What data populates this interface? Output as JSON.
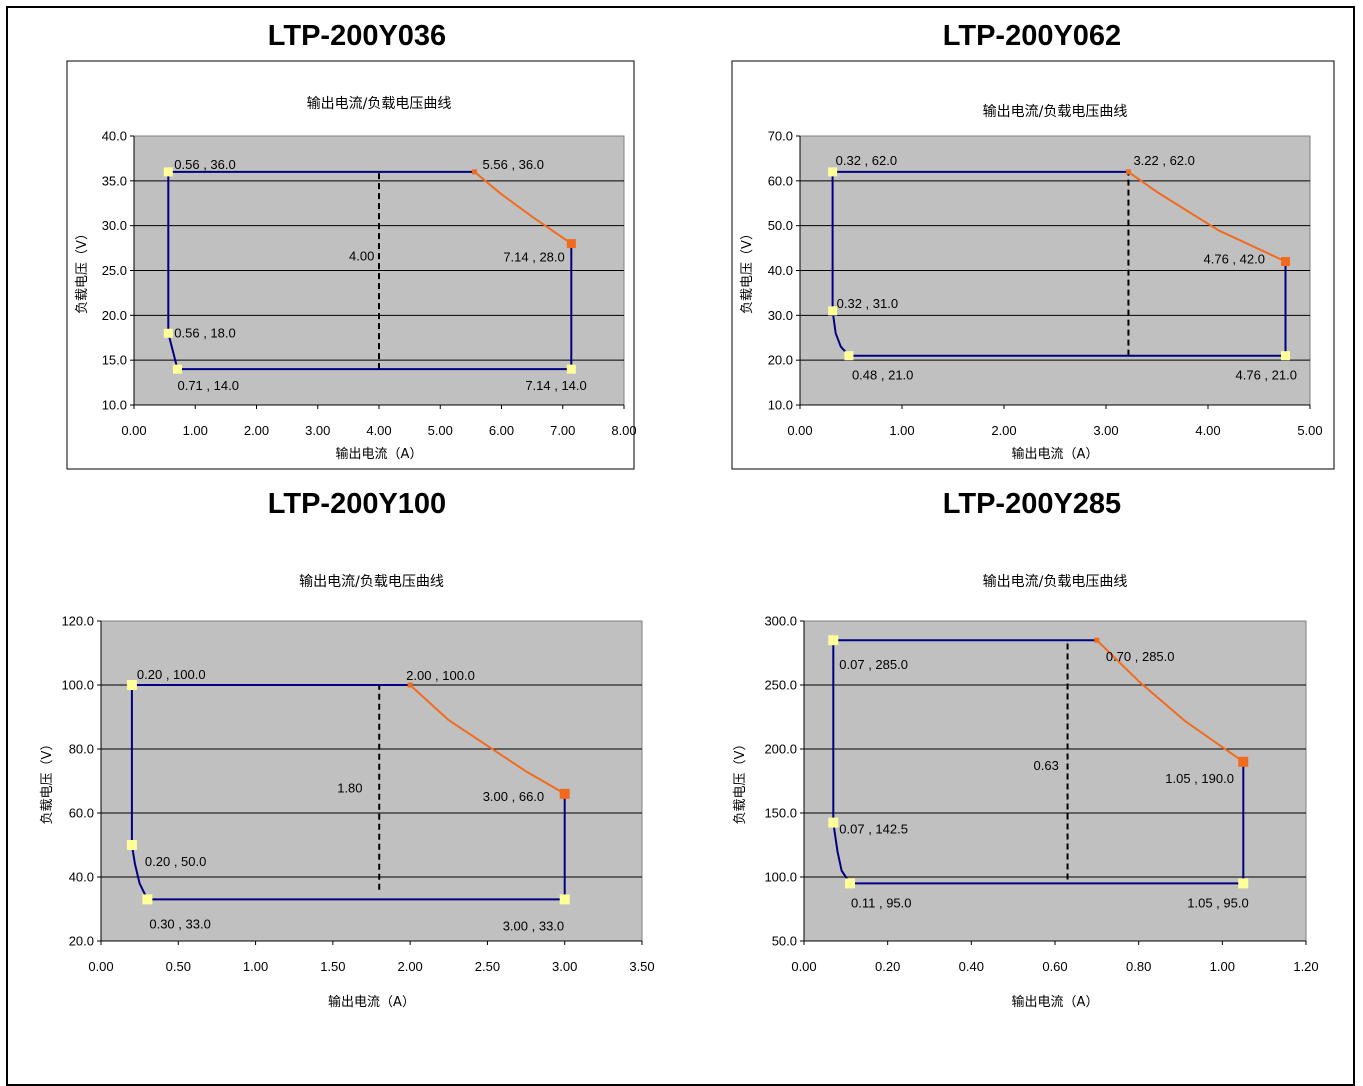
{
  "colors": {
    "plot_bg": "#c0c0c0",
    "boundary_line": "#000080",
    "power_curve": "#f26b1d",
    "light_marker": "#ffff99",
    "dark_marker": "#f26b1d",
    "grid": "#000000"
  },
  "charts": [
    {
      "heading": "LTP-200Y036",
      "title": "输出电流/负载电压曲线",
      "xlabel": "输出电流（A）",
      "ylabel": "负载电压（V）",
      "x_ticks": [
        "0.00",
        "1.00",
        "2.00",
        "3.00",
        "4.00",
        "5.00",
        "6.00",
        "7.00",
        "8.00"
      ],
      "y_ticks": [
        "10.0",
        "15.0",
        "20.0",
        "25.0",
        "30.0",
        "35.0",
        "40.0"
      ],
      "divider_label": "4.00",
      "point_labels": [
        "0.56 , 36.0",
        "5.56 , 36.0",
        "7.14 , 28.0",
        "0.56 , 18.0",
        "0.71 , 14.0",
        "7.14 , 14.0"
      ]
    },
    {
      "heading": "LTP-200Y062",
      "title": "输出电流/负载电压曲线",
      "xlabel": "输出电流（A）",
      "ylabel": "负载电压（V）",
      "x_ticks": [
        "0.00",
        "1.00",
        "2.00",
        "3.00",
        "4.00",
        "5.00"
      ],
      "y_ticks": [
        "10.0",
        "20.0",
        "30.0",
        "40.0",
        "50.0",
        "60.0",
        "70.0"
      ],
      "divider_label": "",
      "point_labels": [
        "0.32 , 62.0",
        "3.22 , 62.0",
        "4.76 , 42.0",
        "0.32 , 31.0",
        "0.48 , 21.0",
        "4.76 , 21.0"
      ]
    },
    {
      "heading": "LTP-200Y100",
      "title": "输出电流/负载电压曲线",
      "xlabel": "输出电流（A）",
      "ylabel": "负载电压（V）",
      "x_ticks": [
        "0.00",
        "0.50",
        "1.00",
        "1.50",
        "2.00",
        "2.50",
        "3.00",
        "3.50"
      ],
      "y_ticks": [
        "20.0",
        "40.0",
        "60.0",
        "80.0",
        "100.0",
        "120.0"
      ],
      "divider_label": "1.80",
      "point_labels": [
        "0.20 , 100.0",
        "2.00 , 100.0",
        "3.00 , 66.0",
        "0.20 , 50.0",
        "0.30 , 33.0",
        "3.00 , 33.0"
      ]
    },
    {
      "heading": "LTP-200Y285",
      "title": "输出电流/负载电压曲线",
      "xlabel": "输出电流（A）",
      "ylabel": "负载电压（V）",
      "x_ticks": [
        "0.00",
        "0.20",
        "0.40",
        "0.60",
        "0.80",
        "1.00",
        "1.20"
      ],
      "y_ticks": [
        "50.0",
        "100.0",
        "150.0",
        "200.0",
        "250.0",
        "300.0"
      ],
      "divider_label": "0.63",
      "point_labels": [
        "0.07 , 285.0",
        "0.70 , 285.0",
        "1.05 , 190.0",
        "0.07 , 142.5",
        "0.11 , 95.0",
        "1.05 , 95.0"
      ]
    }
  ],
  "chart_data": [
    {
      "type": "line",
      "title": "输出电流/负载电压曲线",
      "xlabel": "输出电流（A）",
      "ylabel": "负载电压（V）",
      "xlim": [
        0,
        8
      ],
      "ylim": [
        10,
        40
      ],
      "grid": "horizontal",
      "series": [
        {
          "color": "#000080",
          "points": [
            [
              0.71,
              14.0
            ],
            [
              0.56,
              18.0
            ],
            [
              0.56,
              36.0
            ],
            [
              5.56,
              36.0
            ]
          ]
        },
        {
          "color": "#000080",
          "points": [
            [
              7.14,
              28.0
            ],
            [
              7.14,
              14.0
            ],
            [
              0.71,
              14.0
            ]
          ]
        },
        {
          "color": "#f26b1d",
          "points": [
            [
              5.56,
              36.0
            ],
            [
              6.0,
              33.5
            ],
            [
              6.5,
              31.0
            ],
            [
              7.14,
              28.0
            ]
          ]
        }
      ],
      "markers": [
        {
          "x": 0.56,
          "y": 36.0,
          "kind": "light"
        },
        {
          "x": 5.56,
          "y": 36.0,
          "kind": "dark_small"
        },
        {
          "x": 7.14,
          "y": 28.0,
          "kind": "dark"
        },
        {
          "x": 0.56,
          "y": 18.0,
          "kind": "light"
        },
        {
          "x": 0.71,
          "y": 14.0,
          "kind": "light"
        },
        {
          "x": 7.14,
          "y": 14.0,
          "kind": "light"
        }
      ],
      "divider": {
        "x": 4.0,
        "y_from": 14.0,
        "y_to": 36.0
      }
    },
    {
      "type": "line",
      "title": "输出电流/负载电压曲线",
      "xlabel": "输出电流（A）",
      "ylabel": "负载电压（V）",
      "xlim": [
        0,
        5
      ],
      "ylim": [
        10,
        70
      ],
      "grid": "horizontal",
      "series": [
        {
          "color": "#000080",
          "points": [
            [
              0.48,
              21.0
            ],
            [
              0.4,
              23.0
            ],
            [
              0.35,
              26.0
            ],
            [
              0.32,
              31.0
            ],
            [
              0.32,
              62.0
            ],
            [
              3.22,
              62.0
            ]
          ]
        },
        {
          "color": "#000080",
          "points": [
            [
              4.76,
              42.0
            ],
            [
              4.76,
              21.0
            ],
            [
              0.48,
              21.0
            ]
          ]
        },
        {
          "color": "#f26b1d",
          "points": [
            [
              3.22,
              62.0
            ],
            [
              3.5,
              57.5
            ],
            [
              4.1,
              49.0
            ],
            [
              4.76,
              42.0
            ]
          ]
        }
      ],
      "markers": [
        {
          "x": 0.32,
          "y": 62.0,
          "kind": "light"
        },
        {
          "x": 3.22,
          "y": 62.0,
          "kind": "dark_small"
        },
        {
          "x": 4.76,
          "y": 42.0,
          "kind": "dark"
        },
        {
          "x": 0.32,
          "y": 31.0,
          "kind": "light"
        },
        {
          "x": 0.48,
          "y": 21.0,
          "kind": "light"
        },
        {
          "x": 4.76,
          "y": 21.0,
          "kind": "light"
        }
      ],
      "divider": {
        "x": 3.22,
        "y_from": 21.0,
        "y_to": 62.0
      }
    },
    {
      "type": "line",
      "title": "输出电流/负载电压曲线",
      "xlabel": "输出电流（A）",
      "ylabel": "负载电压（V）",
      "xlim": [
        0,
        3.5
      ],
      "ylim": [
        20,
        120
      ],
      "grid": "horizontal",
      "series": [
        {
          "color": "#000080",
          "points": [
            [
              0.3,
              33.0
            ],
            [
              0.25,
              38.0
            ],
            [
              0.22,
              44.0
            ],
            [
              0.2,
              50.0
            ],
            [
              0.2,
              100.0
            ],
            [
              2.0,
              100.0
            ]
          ]
        },
        {
          "color": "#000080",
          "points": [
            [
              3.0,
              66.0
            ],
            [
              3.0,
              33.0
            ],
            [
              0.3,
              33.0
            ]
          ]
        },
        {
          "color": "#f26b1d",
          "points": [
            [
              2.0,
              100.0
            ],
            [
              2.25,
              89.0
            ],
            [
              2.5,
              81.0
            ],
            [
              2.75,
              73.0
            ],
            [
              3.0,
              66.0
            ]
          ]
        }
      ],
      "markers": [
        {
          "x": 0.2,
          "y": 100.0,
          "kind": "light"
        },
        {
          "x": 2.0,
          "y": 100.0,
          "kind": "dark_small"
        },
        {
          "x": 3.0,
          "y": 66.0,
          "kind": "dark"
        },
        {
          "x": 0.2,
          "y": 50.0,
          "kind": "light"
        },
        {
          "x": 0.3,
          "y": 33.0,
          "kind": "light"
        },
        {
          "x": 3.0,
          "y": 33.0,
          "kind": "light"
        }
      ],
      "divider": {
        "x": 1.8,
        "y_from": 36.0,
        "y_to": 100.0
      }
    },
    {
      "type": "line",
      "title": "输出电流/负载电压曲线",
      "xlabel": "输出电流（A）",
      "ylabel": "负载电压（V）",
      "xlim": [
        0,
        1.2
      ],
      "ylim": [
        50,
        300
      ],
      "grid": "horizontal",
      "series": [
        {
          "color": "#000080",
          "points": [
            [
              0.11,
              95.0
            ],
            [
              0.09,
              105.0
            ],
            [
              0.08,
              120.0
            ],
            [
              0.07,
              142.5
            ],
            [
              0.07,
              285.0
            ],
            [
              0.7,
              285.0
            ]
          ]
        },
        {
          "color": "#000080",
          "points": [
            [
              1.05,
              190.0
            ],
            [
              1.05,
              95.0
            ],
            [
              0.11,
              95.0
            ]
          ]
        },
        {
          "color": "#f26b1d",
          "points": [
            [
              0.7,
              285.0
            ],
            [
              0.8,
              253.0
            ],
            [
              0.91,
              222.0
            ],
            [
              1.05,
              190.0
            ]
          ]
        }
      ],
      "markers": [
        {
          "x": 0.07,
          "y": 285.0,
          "kind": "light"
        },
        {
          "x": 0.7,
          "y": 285.0,
          "kind": "dark_small"
        },
        {
          "x": 1.05,
          "y": 190.0,
          "kind": "dark"
        },
        {
          "x": 0.07,
          "y": 142.5,
          "kind": "light"
        },
        {
          "x": 0.11,
          "y": 95.0,
          "kind": "light"
        },
        {
          "x": 1.05,
          "y": 95.0,
          "kind": "light"
        }
      ],
      "divider": {
        "x": 0.63,
        "y_from": 98.0,
        "y_to": 285.0
      }
    }
  ]
}
